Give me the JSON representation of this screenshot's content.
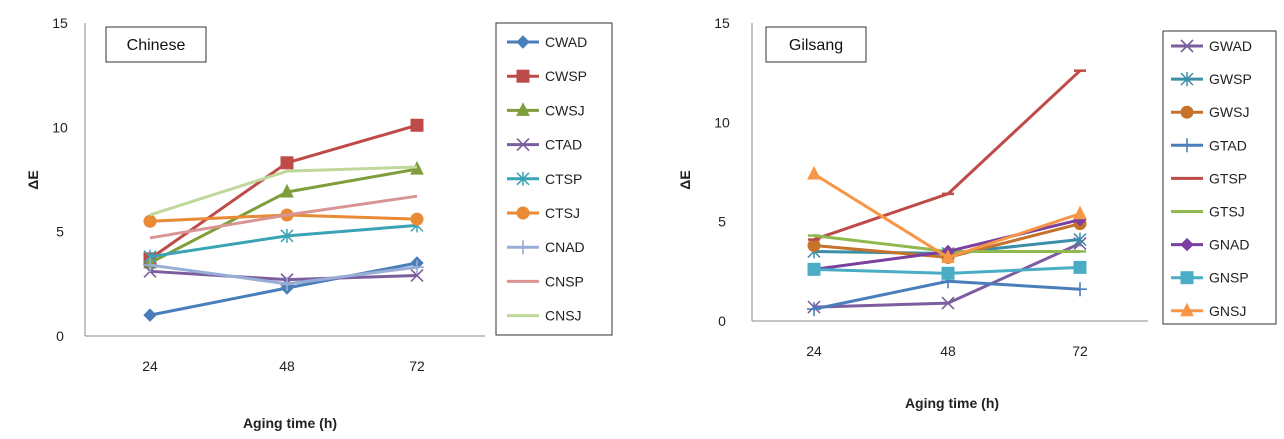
{
  "chart_data": [
    {
      "type": "line",
      "title": "Chinese",
      "xlabel": "Aging time (h)",
      "ylabel": "ΔE",
      "categories": [
        "24",
        "48",
        "72"
      ],
      "ylim": [
        0,
        15
      ],
      "yticks": [
        "0",
        "5",
        "10",
        "15"
      ],
      "legend_position": "right",
      "series": [
        {
          "name": "CWAD",
          "values": [
            1.0,
            2.3,
            3.5
          ],
          "color": "#4a7ebb",
          "marker": "diamond"
        },
        {
          "name": "CWSP",
          "values": [
            3.7,
            8.3,
            10.1
          ],
          "color": "#be4b48",
          "marker": "square"
        },
        {
          "name": "CWSJ",
          "values": [
            3.5,
            6.9,
            8.0
          ],
          "color": "#7d9e3a",
          "marker": "triangle"
        },
        {
          "name": "CTAD",
          "values": [
            3.1,
            2.7,
            2.9
          ],
          "color": "#7b5e9e",
          "marker": "x"
        },
        {
          "name": "CTSP",
          "values": [
            3.8,
            4.8,
            5.3
          ],
          "color": "#3aa3b5",
          "marker": "star"
        },
        {
          "name": "CTSJ",
          "values": [
            5.5,
            5.8,
            5.6
          ],
          "color": "#e98a34",
          "marker": "circle"
        },
        {
          "name": "CNAD",
          "values": [
            3.4,
            2.5,
            3.3
          ],
          "color": "#98aed6",
          "marker": "plus"
        },
        {
          "name": "CNSP",
          "values": [
            4.7,
            5.8,
            6.7
          ],
          "color": "#d99594",
          "marker": "none"
        },
        {
          "name": "CNSJ",
          "values": [
            5.8,
            7.9,
            8.1
          ],
          "color": "#bfd89b",
          "marker": "none"
        }
      ]
    },
    {
      "type": "line",
      "title": "Gilsang",
      "xlabel": "Aging time (h)",
      "ylabel": "ΔE",
      "categories": [
        "24",
        "48",
        "72"
      ],
      "ylim": [
        0,
        15
      ],
      "yticks": [
        "0",
        "5",
        "10",
        "15"
      ],
      "legend_position": "right",
      "series": [
        {
          "name": "GWAD",
          "values": [
            0.7,
            0.9,
            3.9
          ],
          "color": "#7b5e9e",
          "marker": "x"
        },
        {
          "name": "GWSP",
          "values": [
            3.5,
            3.4,
            4.1
          ],
          "color": "#3a8ea8",
          "marker": "star"
        },
        {
          "name": "GWSJ",
          "values": [
            3.8,
            3.2,
            4.9
          ],
          "color": "#c5722a",
          "marker": "circle"
        },
        {
          "name": "GTAD",
          "values": [
            0.6,
            2.0,
            1.6
          ],
          "color": "#4a7ebb",
          "marker": "plus"
        },
        {
          "name": "GTSP",
          "values": [
            4.1,
            6.4,
            12.6
          ],
          "color": "#be4b48",
          "marker": "dash"
        },
        {
          "name": "GTSJ",
          "values": [
            4.3,
            3.5,
            3.5
          ],
          "color": "#8fb84e",
          "marker": "dash"
        },
        {
          "name": "GNAD",
          "values": [
            2.6,
            3.5,
            5.1
          ],
          "color": "#7b3fa0",
          "marker": "diamond"
        },
        {
          "name": "GNSP",
          "values": [
            2.6,
            2.4,
            2.7
          ],
          "color": "#4bacc6",
          "marker": "square"
        },
        {
          "name": "GNSJ",
          "values": [
            7.4,
            3.2,
            5.4
          ],
          "color": "#f79646",
          "marker": "triangle"
        }
      ]
    }
  ]
}
